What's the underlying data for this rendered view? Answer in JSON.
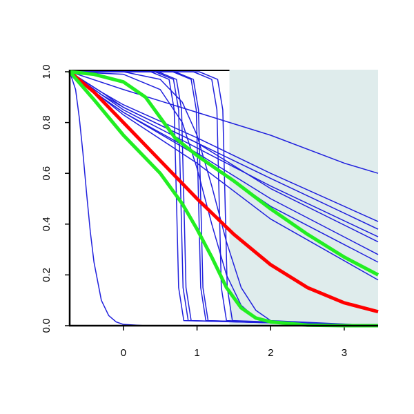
{
  "chart_data": {
    "type": "line",
    "xlim": [
      -0.73,
      3.46
    ],
    "ylim": [
      0,
      1
    ],
    "xticks": [
      0,
      1,
      2,
      3
    ],
    "yticks": [
      {
        "value": 0,
        "label": "0.0"
      },
      {
        "value": 0.2,
        "label": "0.2"
      },
      {
        "value": 0.4,
        "label": "0.4"
      },
      {
        "value": 0.6,
        "label": "0.6"
      },
      {
        "value": 0.8,
        "label": "0.8"
      },
      {
        "value": 1,
        "label": "1.0"
      }
    ],
    "shade_xlim": [
      1.44,
      3.46
    ],
    "shade_color": "#dfecec",
    "series": [
      {
        "color": "#2020dd",
        "line_width": 1.5,
        "x": [
          -0.73,
          -0.65,
          -0.6,
          -0.55,
          -0.5,
          -0.45,
          -0.4,
          -0.3,
          -0.2,
          -0.1,
          0,
          0.3,
          3.46
        ],
        "values": [
          1,
          0.93,
          0.82,
          0.68,
          0.52,
          0.37,
          0.25,
          0.1,
          0.04,
          0.015,
          0.005,
          0,
          0
        ]
      },
      {
        "color": "#2020dd",
        "line_width": 1.5,
        "x": [
          -0.73,
          0,
          1,
          2,
          3,
          3.46
        ],
        "values": [
          1,
          0.93,
          0.84,
          0.75,
          0.64,
          0.6
        ]
      },
      {
        "color": "#2020dd",
        "line_width": 1.5,
        "x": [
          -0.73,
          -0.3,
          0,
          1,
          2,
          3.46
        ],
        "values": [
          1,
          0.92,
          0.87,
          0.74,
          0.6,
          0.41
        ]
      },
      {
        "color": "#2020dd",
        "line_width": 1.5,
        "x": [
          -0.73,
          -0.3,
          0,
          1,
          2,
          3.46
        ],
        "values": [
          1,
          0.91,
          0.86,
          0.72,
          0.58,
          0.38
        ]
      },
      {
        "color": "#2020dd",
        "line_width": 1.5,
        "x": [
          -0.73,
          -0.3,
          0,
          1,
          2,
          3.46
        ],
        "values": [
          1,
          0.91,
          0.85,
          0.7,
          0.55,
          0.35
        ]
      },
      {
        "color": "#2020dd",
        "line_width": 1.5,
        "x": [
          -0.73,
          -0.3,
          0,
          1,
          2,
          3.46
        ],
        "values": [
          1,
          0.92,
          0.86,
          0.72,
          0.54,
          0.33
        ]
      },
      {
        "color": "#2020dd",
        "line_width": 1.5,
        "x": [
          -0.73,
          -0.3,
          0,
          1,
          2,
          3.46
        ],
        "values": [
          1,
          0.9,
          0.84,
          0.68,
          0.5,
          0.28
        ]
      },
      {
        "color": "#2020dd",
        "line_width": 1.5,
        "x": [
          -0.73,
          -0.3,
          0,
          1,
          2,
          3.46
        ],
        "values": [
          1,
          0.9,
          0.84,
          0.67,
          0.47,
          0.25
        ]
      },
      {
        "color": "#2020dd",
        "line_width": 1.5,
        "x": [
          -0.73,
          -0.3,
          0,
          1,
          2,
          3.46
        ],
        "values": [
          1,
          0.9,
          0.83,
          0.64,
          0.42,
          0.18
        ]
      },
      {
        "color": "#2020dd",
        "line_width": 1.5,
        "x": [
          -0.73,
          0.37,
          0.62,
          0.69,
          0.72,
          0.75,
          0.82,
          3.46
        ],
        "values": [
          1,
          1,
          0.97,
          0.85,
          0.5,
          0.15,
          0.02,
          0
        ]
      },
      {
        "color": "#2020dd",
        "line_width": 1.5,
        "x": [
          -0.73,
          0.43,
          0.68,
          0.75,
          0.78,
          0.81,
          0.88,
          3.46
        ],
        "values": [
          1,
          1,
          0.97,
          0.85,
          0.5,
          0.15,
          0.02,
          0
        ]
      },
      {
        "color": "#2020dd",
        "line_width": 1.5,
        "x": [
          -0.73,
          0.47,
          0.72,
          0.79,
          0.82,
          0.85,
          0.92,
          3.46
        ],
        "values": [
          1,
          1,
          0.97,
          0.85,
          0.5,
          0.15,
          0.02,
          0
        ]
      },
      {
        "color": "#2020dd",
        "line_width": 1.5,
        "x": [
          -0.73,
          0.67,
          0.92,
          0.99,
          1.02,
          1.05,
          1.12,
          3.46
        ],
        "values": [
          1,
          1,
          0.97,
          0.85,
          0.5,
          0.15,
          0.02,
          0
        ]
      },
      {
        "color": "#2020dd",
        "line_width": 1.5,
        "x": [
          -0.73,
          0.7,
          0.95,
          1.02,
          1.05,
          1.08,
          1.15,
          3.46
        ],
        "values": [
          1,
          1,
          0.97,
          0.85,
          0.5,
          0.15,
          0.02,
          0
        ]
      },
      {
        "color": "#2020dd",
        "line_width": 1.5,
        "x": [
          -0.73,
          0.95,
          1.2,
          1.27,
          1.3,
          1.33,
          1.4,
          3.46
        ],
        "values": [
          1,
          1,
          0.97,
          0.85,
          0.5,
          0.15,
          0.02,
          0
        ]
      },
      {
        "color": "#2020dd",
        "line_width": 1.5,
        "x": [
          -0.73,
          1.03,
          1.28,
          1.35,
          1.38,
          1.41,
          1.48,
          3.46
        ],
        "values": [
          1,
          1,
          0.97,
          0.85,
          0.5,
          0.15,
          0.02,
          0
        ]
      },
      {
        "color": "#2020dd",
        "line_width": 1.5,
        "x": [
          -0.73,
          0,
          0.5,
          0.8,
          1,
          1.2,
          1.4,
          1.6,
          1.8,
          2,
          3.46
        ],
        "values": [
          1,
          0.99,
          0.93,
          0.8,
          0.62,
          0.4,
          0.2,
          0.08,
          0.03,
          0.01,
          0
        ]
      },
      {
        "color": "#2020dd",
        "line_width": 1.5,
        "x": [
          -0.73,
          0,
          0.5,
          0.8,
          1,
          1.2,
          1.4,
          1.6,
          1.8,
          2,
          3.46
        ],
        "values": [
          1,
          1,
          0.97,
          0.88,
          0.75,
          0.55,
          0.33,
          0.15,
          0.06,
          0.02,
          0
        ]
      },
      {
        "color": "#ff0000",
        "line_width": 5,
        "x": [
          -0.73,
          -0.4,
          0,
          0.5,
          1,
          1.5,
          2,
          2.5,
          3,
          3.46
        ],
        "values": [
          1,
          0.92,
          0.8,
          0.65,
          0.5,
          0.36,
          0.24,
          0.15,
          0.09,
          0.055
        ]
      },
      {
        "color": "#22ee22",
        "line_width": 5,
        "x": [
          -0.73,
          -0.4,
          0,
          0.5,
          0.8,
          1,
          1.2,
          1.4,
          1.6,
          1.8,
          2,
          2.5,
          3,
          3.46
        ],
        "values": [
          1,
          0.89,
          0.75,
          0.6,
          0.48,
          0.38,
          0.27,
          0.15,
          0.07,
          0.03,
          0.015,
          0.002,
          0,
          0
        ]
      },
      {
        "color": "#22ee22",
        "line_width": 5,
        "x": [
          -0.73,
          -0.4,
          0,
          0.3,
          0.5,
          0.7,
          1,
          1.5,
          2,
          2.5,
          3,
          3.46
        ],
        "values": [
          1,
          0.99,
          0.96,
          0.9,
          0.82,
          0.74,
          0.67,
          0.57,
          0.46,
          0.36,
          0.27,
          0.2
        ]
      }
    ]
  }
}
